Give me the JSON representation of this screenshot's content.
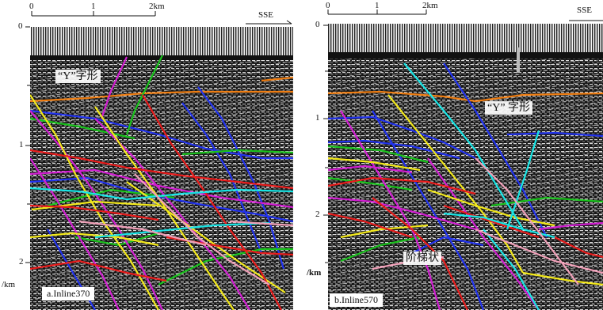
{
  "panels": [
    {
      "caption": "a.Inline370",
      "callouts": [
        "“Y”字形"
      ],
      "scale": {
        "ticks": [
          "0",
          "1",
          "2km"
        ]
      },
      "direction": "SSE",
      "depth": {
        "ticks": [
          "0",
          "1",
          "2"
        ],
        "unit": "/km"
      }
    },
    {
      "caption": "b.Inline570",
      "callouts": [
        "“Y” 字形",
        "阶梯状"
      ],
      "scale": {
        "ticks": [
          "0",
          "1",
          "2km"
        ]
      },
      "direction": "SSE",
      "depth": {
        "ticks": [
          "0",
          "1",
          "2"
        ],
        "unit": "/km"
      }
    }
  ],
  "colors": {
    "background": "#1a1a1a",
    "fault_red": "#e81c1c",
    "fault_magenta": "#d21ed2",
    "fault_yellow": "#f2e81a",
    "fault_blue": "#2233ee",
    "fault_green": "#19c21c",
    "fault_cyan": "#18e5e5",
    "fault_pink": "#f0a0b8",
    "fault_orange": "#ee7d12"
  }
}
